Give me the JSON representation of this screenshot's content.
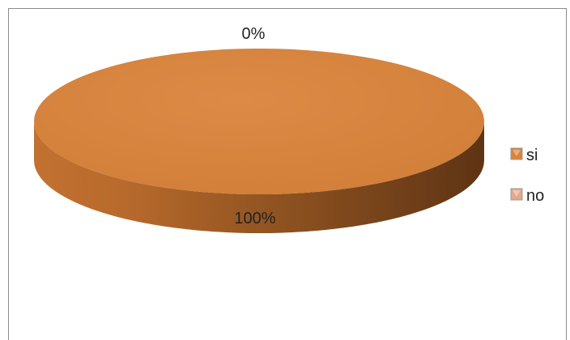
{
  "chart_data": {
    "type": "pie",
    "style": "3d",
    "categories": [
      "si",
      "no"
    ],
    "values": [
      100,
      0
    ],
    "data_labels": [
      "100%",
      "0%"
    ],
    "legend": {
      "placement": "right",
      "entries": [
        "si",
        "no"
      ]
    },
    "colors": {
      "si": "#D8843C",
      "no": "#E2A98C"
    }
  }
}
